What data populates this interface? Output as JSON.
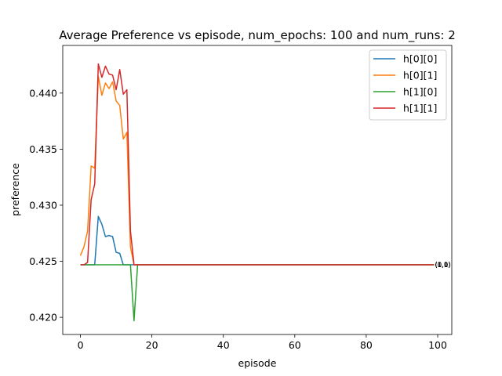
{
  "chart_data": {
    "type": "line",
    "title": "Average Preference vs episode, num_epochs: 100 and num_runs: 2",
    "xlabel": "episode",
    "ylabel": "preference",
    "xlim": [
      -4.95,
      103.95
    ],
    "ylim": [
      0.41847,
      0.44425
    ],
    "xticks": [
      0,
      20,
      40,
      60,
      80,
      100
    ],
    "yticks": [
      0.42,
      0.425,
      0.43,
      0.435,
      0.44
    ],
    "ytick_labels": [
      "0.420",
      "0.425",
      "0.430",
      "0.435",
      "0.440"
    ],
    "grid": false,
    "legend_position": "top-right",
    "end_labels": [
      "(1,1)",
      "(0,0)",
      "(0,1)",
      "(1,0)"
    ],
    "baseline": 0.42469,
    "series": [
      {
        "name": "h[0][0]",
        "color": "#1f77b4",
        "points": [
          [
            0,
            0.42469
          ],
          [
            1,
            0.42469
          ],
          [
            2,
            0.42469
          ],
          [
            3,
            0.42469
          ],
          [
            4,
            0.42469
          ],
          [
            5,
            0.429
          ],
          [
            6,
            0.4283
          ],
          [
            7,
            0.4272
          ],
          [
            8,
            0.4273
          ],
          [
            9,
            0.4272
          ],
          [
            10,
            0.4258
          ],
          [
            11,
            0.4257
          ],
          [
            12,
            0.42469
          ],
          [
            13,
            0.42469
          ],
          [
            14,
            0.42469
          ],
          [
            15,
            0.42469
          ],
          [
            99,
            0.42469
          ]
        ]
      },
      {
        "name": "h[0][1]",
        "color": "#ff7f0e",
        "points": [
          [
            0,
            0.4255
          ],
          [
            1,
            0.4263
          ],
          [
            2,
            0.4277
          ],
          [
            3,
            0.4335
          ],
          [
            4,
            0.4333
          ],
          [
            5,
            0.4415
          ],
          [
            6,
            0.4398
          ],
          [
            7,
            0.4409
          ],
          [
            8,
            0.4404
          ],
          [
            9,
            0.441
          ],
          [
            10,
            0.4393
          ],
          [
            11,
            0.4389
          ],
          [
            12,
            0.4359
          ],
          [
            13,
            0.4365
          ],
          [
            14,
            0.4263
          ],
          [
            15,
            0.42469
          ],
          [
            99,
            0.42469
          ]
        ]
      },
      {
        "name": "h[1][0]",
        "color": "#2ca02c",
        "points": [
          [
            0,
            0.42469
          ],
          [
            13,
            0.42469
          ],
          [
            14,
            0.42469
          ],
          [
            15,
            0.4197
          ],
          [
            16,
            0.42469
          ],
          [
            99,
            0.42469
          ]
        ]
      },
      {
        "name": "h[1][1]",
        "color": "#d62728",
        "points": [
          [
            0,
            0.42469
          ],
          [
            1,
            0.42469
          ],
          [
            2,
            0.4249
          ],
          [
            3,
            0.4305
          ],
          [
            4,
            0.4319
          ],
          [
            5,
            0.4426
          ],
          [
            6,
            0.4414
          ],
          [
            7,
            0.4424
          ],
          [
            8,
            0.4417
          ],
          [
            9,
            0.4416
          ],
          [
            10,
            0.4403
          ],
          [
            11,
            0.4421
          ],
          [
            12,
            0.4399
          ],
          [
            13,
            0.4403
          ],
          [
            14,
            0.4277
          ],
          [
            15,
            0.42469
          ],
          [
            99,
            0.42469
          ]
        ]
      }
    ]
  }
}
